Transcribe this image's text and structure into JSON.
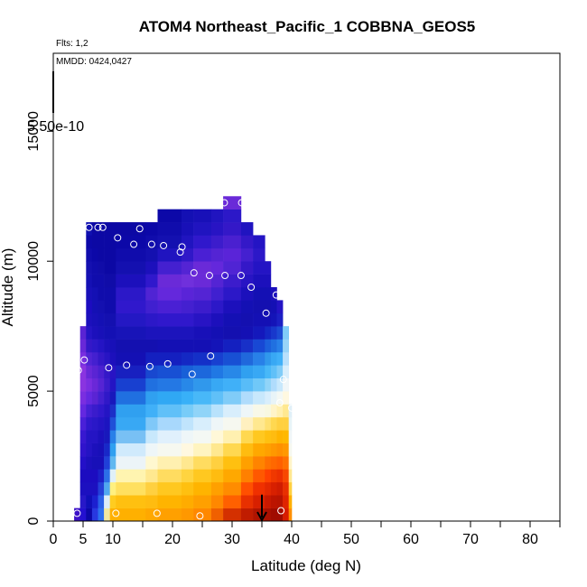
{
  "chart_data": {
    "type": "heatmap",
    "title": "ATOM4 Northeast_Pacific_1 COBBNA_GEOS5",
    "flights_label": "Flts: 1,2",
    "date_label": "MMDD: 0424,0427",
    "legend_value_label": "5.50e-10",
    "xlabel": "Latitude (deg N)",
    "ylabel": "Altitude (m)",
    "xlim": [
      0,
      85
    ],
    "ylim": [
      0,
      18000
    ],
    "x_ticks": [
      0,
      5,
      10,
      20,
      30,
      40,
      50,
      60,
      70,
      80
    ],
    "x_minor_ticks": [
      15,
      25,
      35,
      45,
      55,
      65,
      75,
      85
    ],
    "y_ticks": [
      0,
      5000,
      10000,
      15000
    ],
    "columns": [
      {
        "lat_from": 3.5,
        "lat_to": 4.5,
        "top": 500,
        "cells": [
          "#3c10c8",
          "#3c10c8"
        ]
      },
      {
        "lat_from": 4.5,
        "lat_to": 5.5,
        "top": 7500,
        "cells": [
          "#2410d0",
          "#2818c8",
          "#1c10c0",
          "#1c0cc0",
          "#2410c8",
          "#3014cc",
          "#3818d0",
          "#4a20d8",
          "#6428e0",
          "#7a2ee0",
          "#8a34e0",
          "#8a34e0",
          "#7a2ee0",
          "#6828d8",
          "#5a24d4"
        ]
      },
      {
        "lat_from": 5.5,
        "lat_to": 6.5,
        "top": 11500,
        "cells": [
          "#0c08a8",
          "#1010b8",
          "#1c10c0",
          "#1c0cc0",
          "#1c10bc",
          "#2414c4",
          "#2414c4",
          "#3018cc",
          "#4420d4",
          "#6428e0",
          "#7a2ee0",
          "#6828d8",
          "#5024d4",
          "#3418c8",
          "#2414c4",
          "#1c10bc",
          "#1c0cc0",
          "#1810b8",
          "#1410b4",
          "#1410b0",
          "#100cac",
          "#0c08a8",
          "#1010b0"
        ]
      },
      {
        "lat_from": 6.5,
        "lat_to": 7.5,
        "top": 11500,
        "cells": [
          "#2838e0",
          "#1c20d0",
          "#1c10c0",
          "#1c0cc0",
          "#1810b8",
          "#1c10bc",
          "#2414c4",
          "#2a18c8",
          "#3a1ccc",
          "#5a24d4",
          "#6a28d8",
          "#5a24d4",
          "#4420d0",
          "#2c18c8",
          "#1c10bc",
          "#1810b8",
          "#1410b4",
          "#1410b4",
          "#100cac",
          "#100cac",
          "#0c08a8",
          "#0c08a4",
          "#0c08a4"
        ]
      },
      {
        "lat_from": 7.5,
        "lat_to": 8.5,
        "top": 11500,
        "cells": [
          "#2c70f0",
          "#2a60e8",
          "#2440d8",
          "#1c20c8",
          "#1810b8",
          "#1810b8",
          "#1c10bc",
          "#2414c4",
          "#3018cc",
          "#4420d0",
          "#5624d4",
          "#4a20d0",
          "#3418c8",
          "#2414c4",
          "#1810b8",
          "#1410b4",
          "#1410b0",
          "#100cac",
          "#100cac",
          "#100ca8",
          "#0c08a4",
          "#0c08a4",
          "#0c08a4"
        ]
      },
      {
        "lat_from": 8.5,
        "lat_to": 9.5,
        "top": 11500,
        "cells": [
          "#f0e8a0",
          "#dcecf8",
          "#50a8f0",
          "#2c70e8",
          "#2040d8",
          "#1828c8",
          "#1818bc",
          "#1c14c0",
          "#2414c4",
          "#3018c8",
          "#3c1ccc",
          "#3418c8",
          "#2814c4",
          "#1c10bc",
          "#1410b4",
          "#1410b0",
          "#100cac",
          "#100cac",
          "#100ca8",
          "#0c08a4",
          "#0c08a4",
          "#0c08a4",
          "#0c08a4"
        ]
      },
      {
        "lat_from": 9.5,
        "lat_to": 10.5,
        "top": 11500,
        "cells": [
          "#ffb000",
          "#ffcc20",
          "#fff080",
          "#e0f0f8",
          "#60b8f0",
          "#30a0f0",
          "#2880e8",
          "#2050d8",
          "#1c30c8",
          "#1818bc",
          "#2414c4",
          "#2814c4",
          "#1c10bc",
          "#1810b8",
          "#1410b4",
          "#1410b0",
          "#100cac",
          "#100cac",
          "#100ca8",
          "#0c08a4",
          "#0c08a4",
          "#0c08a4",
          "#0c08a4"
        ]
      },
      {
        "lat_from": 10.5,
        "lat_to": 15.5,
        "top": 11500,
        "cells": [
          "#ffb000",
          "#ffc010",
          "#ffe060",
          "#fff4b0",
          "#ecf4f8",
          "#d0eafc",
          "#78c0f4",
          "#38a8f4",
          "#30a0f0",
          "#2070e0",
          "#1840d0",
          "#1820c0",
          "#1410b4",
          "#1410b0",
          "#1814b8",
          "#2418c4",
          "#3018cc",
          "#2c18c8",
          "#1c10bc",
          "#1410b0",
          "#100cac",
          "#0c08a8",
          "#0c08a4"
        ]
      },
      {
        "lat_from": 15.5,
        "lat_to": 17.5,
        "top": 11500,
        "cells": [
          "#ffa800",
          "#ffbc10",
          "#ffd040",
          "#ffe890",
          "#fff8d0",
          "#eef6f8",
          "#c8e8fc",
          "#80c8f8",
          "#40b0f8",
          "#30a0f0",
          "#2070e0",
          "#1848d0",
          "#1420c0",
          "#1410b0",
          "#1c14bc",
          "#2c18c8",
          "#4020d0",
          "#5024d4",
          "#3018cc",
          "#1c10bc",
          "#1410b0",
          "#100cac",
          "#0c08a8"
        ]
      },
      {
        "lat_from": 17.5,
        "lat_to": 21.5,
        "top": 12000,
        "cells": [
          "#ffa000",
          "#ffb400",
          "#ffc820",
          "#ffdc60",
          "#fff0b0",
          "#f6f8f0",
          "#e0f0fc",
          "#a8d8fc",
          "#60c0f8",
          "#30a8f4",
          "#2478e4",
          "#1850d4",
          "#1420c0",
          "#1410b4",
          "#1c14bc",
          "#3018cc",
          "#4a20d4",
          "#6428dc",
          "#6a2ad8",
          "#4420d0",
          "#2014c0",
          "#1410b0",
          "#100cac",
          "#0c08a8"
        ]
      },
      {
        "lat_from": 21.5,
        "lat_to": 23.5,
        "top": 12000,
        "cells": [
          "#ff9800",
          "#ffac00",
          "#ffc010",
          "#ffd440",
          "#ffe890",
          "#fff8e0",
          "#eef6f8",
          "#c0e4fc",
          "#78ccf8",
          "#38b0f8",
          "#2888e8",
          "#1860d8",
          "#1428c4",
          "#1410b4",
          "#1c14bc",
          "#3018cc",
          "#4420d0",
          "#5a24d8",
          "#7030dc",
          "#5424d4",
          "#3018c8",
          "#2014c0",
          "#1810b8",
          "#1410b4"
        ]
      },
      {
        "lat_from": 23.5,
        "lat_to": 26.5,
        "top": 12000,
        "cells": [
          "#ff8800",
          "#ffa000",
          "#ffb400",
          "#ffc820",
          "#ffdc60",
          "#fff4c0",
          "#f4f8f4",
          "#d8eefc",
          "#90d4f8",
          "#48b8f8",
          "#3098ec",
          "#1c68dc",
          "#1430c8",
          "#1410b4",
          "#1810b8",
          "#2814c4",
          "#3c1ccc",
          "#5424d4",
          "#6a2ad8",
          "#6a2ad8",
          "#4a20d4",
          "#3018cc",
          "#2014c0",
          "#1810b8"
        ]
      },
      {
        "lat_from": 26.5,
        "lat_to": 28.5,
        "top": 12000,
        "cells": [
          "#f06000",
          "#ff8800",
          "#ffa000",
          "#ffbc10",
          "#ffd040",
          "#ffe890",
          "#fff8d8",
          "#eef6f8",
          "#b8e2fc",
          "#60c0f8",
          "#38a8f4",
          "#2078e4",
          "#1840d0",
          "#1414b8",
          "#1410b4",
          "#1c10bc",
          "#2c18c8",
          "#4020d0",
          "#5424d4",
          "#6428dc",
          "#5424d4",
          "#3c1ccc",
          "#2814c4",
          "#2014c0"
        ]
      },
      {
        "lat_from": 28.5,
        "lat_to": 31.5,
        "top": 12500,
        "cells": [
          "#d43000",
          "#ff6000",
          "#ff8c00",
          "#ffa800",
          "#ffc010",
          "#ffd850",
          "#fff0b0",
          "#f6f8f0",
          "#d8eefc",
          "#80ccf8",
          "#40b0f8",
          "#2888e8",
          "#1850d4",
          "#1420c0",
          "#1410b0",
          "#1410b4",
          "#1c10bc",
          "#2c18c8",
          "#3c1ccc",
          "#5024d4",
          "#5a24d8",
          "#4a20d0",
          "#3418c8",
          "#2c18c8",
          "#6a2ad8"
        ]
      },
      {
        "lat_from": 31.5,
        "lat_to": 33.5,
        "top": 11500,
        "cells": [
          "#c01c00",
          "#e83000",
          "#ff5000",
          "#ff8000",
          "#ffa000",
          "#ffbc10",
          "#ffd850",
          "#fff0c0",
          "#eef6f8",
          "#b0dcfc",
          "#58bcf8",
          "#30a0f0",
          "#2068dc",
          "#1830c8",
          "#1410b4",
          "#1410b0",
          "#1410b4",
          "#1c10bc",
          "#2814c4",
          "#3418c8",
          "#4420d0",
          "#3418c8",
          "#2014c0"
        ]
      },
      {
        "lat_from": 33.5,
        "lat_to": 35.5,
        "top": 11000,
        "cells": [
          "#b01400",
          "#d82000",
          "#f03000",
          "#ff5800",
          "#ff8400",
          "#ffa800",
          "#ffc820",
          "#ffe890",
          "#f8f8e8",
          "#c8e8fc",
          "#70c8f8",
          "#38a8f4",
          "#2880e8",
          "#1848d4",
          "#1418bc",
          "#1410b4",
          "#1410b0",
          "#1410b4",
          "#1c10bc",
          "#2414c4",
          "#2c18c8",
          "#2414c4"
        ]
      },
      {
        "lat_from": 35.5,
        "lat_to": 36.5,
        "top": 10000,
        "cells": [
          "#a81000",
          "#c81800",
          "#e42800",
          "#ff4000",
          "#ff7000",
          "#ffa000",
          "#ffc010",
          "#ffe070",
          "#f8f8e0",
          "#d8eefc",
          "#90d4f8",
          "#48b8f8",
          "#3098ec",
          "#1c60dc",
          "#1428c4",
          "#1410b4",
          "#1410b0",
          "#1410b4",
          "#1c10bc",
          "#2414c4"
        ]
      },
      {
        "lat_from": 36.5,
        "lat_to": 37.5,
        "top": 9000,
        "cells": [
          "#a00c00",
          "#bc1400",
          "#d82000",
          "#f03800",
          "#ff6800",
          "#ff9800",
          "#ffbc10",
          "#ffd850",
          "#fff4c8",
          "#e8f4f8",
          "#b0dcfc",
          "#60c0f8",
          "#38a8f4",
          "#2070e0",
          "#1838cc",
          "#1414b8",
          "#1410b4",
          "#1c10bc"
        ]
      },
      {
        "lat_from": 37.5,
        "lat_to": 38.5,
        "top": 8500,
        "cells": [
          "#a00c00",
          "#b81400",
          "#d01c00",
          "#ec3000",
          "#ff6000",
          "#ff9000",
          "#ffb400",
          "#ffd040",
          "#fff0b0",
          "#f4f8f4",
          "#c8e8fc",
          "#80ccf8",
          "#40b0f8",
          "#2880e8",
          "#1c4cd4",
          "#1c20c4",
          "#2414c4"
        ]
      },
      {
        "lat_from": 38.5,
        "lat_to": 39.5,
        "top": 7500,
        "cells": [
          "#d81c00",
          "#e02400",
          "#e83000",
          "#f84800",
          "#ff7000",
          "#ff9800",
          "#ffb800",
          "#ffd040",
          "#ffe890",
          "#fff8e0",
          "#f0f6f8",
          "#d8eefc",
          "#b8e0fc",
          "#98d4f8",
          "#80ccf8"
        ]
      },
      {
        "lat_from": 39.5,
        "lat_to": 40.0,
        "top": 4500,
        "cells": [
          "#ff9000",
          "#ffb000",
          "#ffd040",
          "#ffe890",
          "#fff4c8",
          "#f6f8f0",
          "#f0f6f8",
          "#e8f4f8",
          "#e0f0f8"
        ]
      }
    ],
    "observations": [
      {
        "lat": 4.0,
        "alt": 300
      },
      {
        "lat": 4.2,
        "alt": 5800
      },
      {
        "lat": 5.2,
        "alt": 6200
      },
      {
        "lat": 6.0,
        "alt": 11300
      },
      {
        "lat": 7.5,
        "alt": 11300
      },
      {
        "lat": 8.3,
        "alt": 11300
      },
      {
        "lat": 9.3,
        "alt": 5900
      },
      {
        "lat": 10.5,
        "alt": 300
      },
      {
        "lat": 10.8,
        "alt": 10900
      },
      {
        "lat": 12.3,
        "alt": 6000
      },
      {
        "lat": 13.5,
        "alt": 10650
      },
      {
        "lat": 14.5,
        "alt": 11250
      },
      {
        "lat": 16.2,
        "alt": 5950
      },
      {
        "lat": 16.5,
        "alt": 10650
      },
      {
        "lat": 17.4,
        "alt": 300
      },
      {
        "lat": 18.5,
        "alt": 10600
      },
      {
        "lat": 19.2,
        "alt": 6050
      },
      {
        "lat": 21.3,
        "alt": 10350
      },
      {
        "lat": 21.6,
        "alt": 10550
      },
      {
        "lat": 23.3,
        "alt": 5650
      },
      {
        "lat": 23.6,
        "alt": 9550
      },
      {
        "lat": 24.6,
        "alt": 200
      },
      {
        "lat": 26.2,
        "alt": 9450
      },
      {
        "lat": 26.4,
        "alt": 6350
      },
      {
        "lat": 28.7,
        "alt": 12250
      },
      {
        "lat": 28.8,
        "alt": 9450
      },
      {
        "lat": 31.5,
        "alt": 9450
      },
      {
        "lat": 31.6,
        "alt": 12250
      },
      {
        "lat": 33.2,
        "alt": 9000
      },
      {
        "lat": 35.7,
        "alt": 8000
      },
      {
        "lat": 37.4,
        "alt": 8700
      },
      {
        "lat": 38.0,
        "alt": 4550
      },
      {
        "lat": 38.2,
        "alt": 400
      },
      {
        "lat": 38.6,
        "alt": 5450
      },
      {
        "lat": 40.0,
        "alt": 4350
      }
    ],
    "marker": {
      "lat": 35.0,
      "alt": 600
    }
  }
}
